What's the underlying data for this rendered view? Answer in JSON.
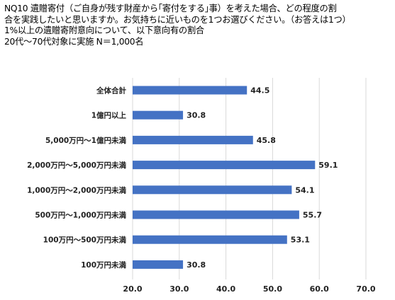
{
  "title_lines": [
    "NQ10 遺贈寄付（ご自身が残す財産から｢寄付をする｣事）を考えた場合、どの程度の割",
    "合を実践したいと思いますか。お気持ちに近いものを1つお選びください。（お答えは1つ）",
    "1%以上の遺贈寄附意向について、以下意向有の割合",
    "20代～70代対象に実施 N＝1,000名"
  ],
  "chart_data": {
    "type": "bar",
    "orientation": "horizontal",
    "categories": [
      "全体合計",
      "1億円以上",
      "5,000万円～1億円未満",
      "2,000万円～5,000万円未満",
      "1,000万円～2,000万円未満",
      "500万円～1,000万円未満",
      "100万円～500万円未満",
      "100万円未満"
    ],
    "values": [
      44.5,
      30.8,
      45.8,
      59.1,
      54.1,
      55.7,
      53.1,
      30.8
    ],
    "value_labels": [
      "44.5",
      "30.8",
      "45.8",
      "59.1",
      "54.1",
      "55.7",
      "53.1",
      "30.8"
    ],
    "xlim": [
      20.0,
      70.0
    ],
    "xticks": [
      20.0,
      30.0,
      40.0,
      50.0,
      60.0,
      70.0
    ],
    "xtick_labels": [
      "20.0",
      "30.0",
      "40.0",
      "50.0",
      "60.0",
      "70.0"
    ],
    "grid": "vertical",
    "bar_color": "#4472C4",
    "grid_color": "#D9D9D9"
  }
}
